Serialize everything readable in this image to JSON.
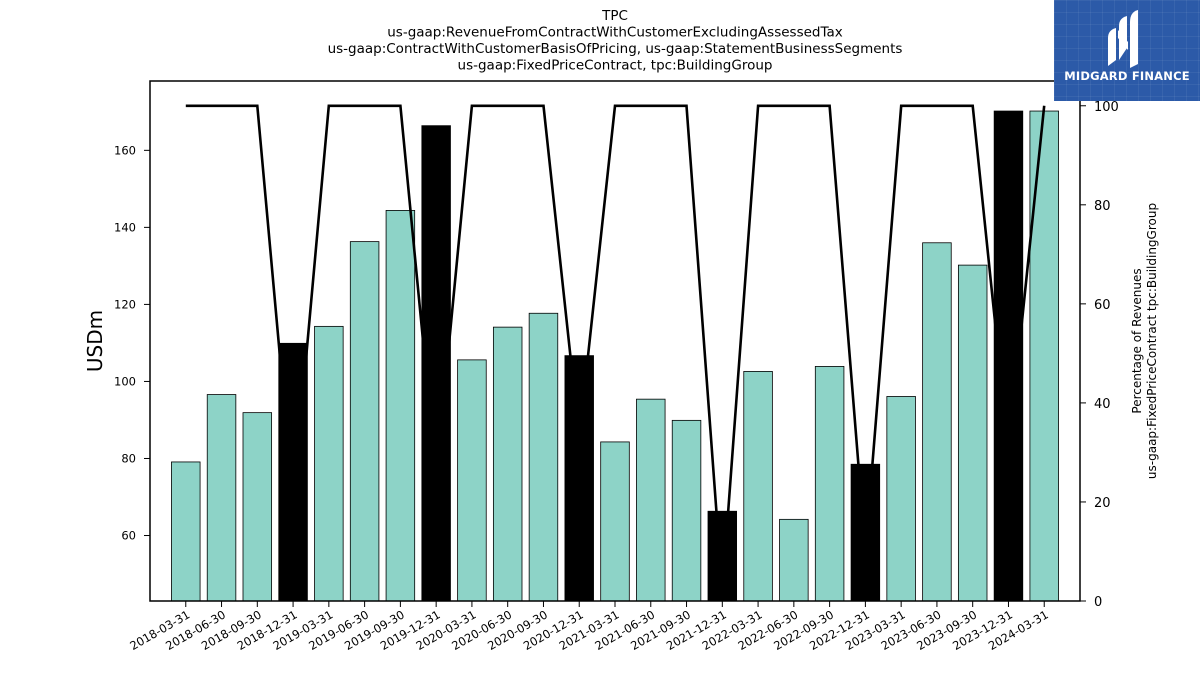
{
  "chart_data": {
    "type": "bar",
    "title_lines": [
      "TPC",
      "us-gaap:RevenueFromContractWithCustomerExcludingAssessedTax",
      "us-gaap:ContractWithCustomerBasisOfPricing, us-gaap:StatementBusinessSegments",
      "us-gaap:FixedPriceContract, tpc:BuildingGroup"
    ],
    "xlabel": "",
    "ylabel": "USDm",
    "y2label_lines": [
      "Percentage of Revenues",
      "us-gaap:FixedPriceContract tpc:BuildingGroup"
    ],
    "ylim": [
      43,
      178
    ],
    "yticks": [
      60,
      80,
      100,
      120,
      140,
      160
    ],
    "y2lim": [
      0,
      105
    ],
    "y2ticks": [
      0,
      20,
      40,
      60,
      80,
      100
    ],
    "categories": [
      "2018-03-31",
      "2018-06-30",
      "2018-09-30",
      "2018-12-31",
      "2019-03-31",
      "2019-06-30",
      "2019-09-30",
      "2019-12-31",
      "2020-03-31",
      "2020-06-30",
      "2020-09-30",
      "2020-12-31",
      "2021-03-31",
      "2021-06-30",
      "2021-09-30",
      "2021-12-31",
      "2022-03-31",
      "2022-06-30",
      "2022-09-30",
      "2022-12-31",
      "2023-03-31",
      "2023-06-30",
      "2023-09-30",
      "2023-12-31",
      "2024-03-31"
    ],
    "series": [
      {
        "type": "bar",
        "values": [
          79.1,
          96.6,
          91.9,
          109.9,
          114.3,
          136.3,
          144.4,
          166.4,
          105.6,
          114.1,
          117.7,
          106.7,
          84.3,
          95.4,
          89.9,
          66.3,
          102.6,
          64.2,
          103.9,
          78.5,
          96.1,
          136.0,
          130.2,
          170.2,
          170.2
        ],
        "colors": [
          "#8dd3c7",
          "#8dd3c7",
          "#8dd3c7",
          "#000000",
          "#8dd3c7",
          "#8dd3c7",
          "#8dd3c7",
          "#000000",
          "#8dd3c7",
          "#8dd3c7",
          "#8dd3c7",
          "#000000",
          "#8dd3c7",
          "#8dd3c7",
          "#8dd3c7",
          "#000000",
          "#8dd3c7",
          "#8dd3c7",
          "#8dd3c7",
          "#000000",
          "#8dd3c7",
          "#8dd3c7",
          "#8dd3c7",
          "#000000",
          "#8dd3c7"
        ]
      },
      {
        "type": "line",
        "axis": "right",
        "values": [
          100,
          100,
          100,
          20,
          100,
          100,
          100,
          25,
          100,
          100,
          100,
          33,
          100,
          100,
          100,
          2,
          100,
          100,
          100,
          10,
          100,
          100,
          100,
          30,
          100
        ],
        "color": "#000000"
      }
    ],
    "grid": false,
    "legend": "none"
  },
  "logo": {
    "text": "MIDGARD FINANCE",
    "icon": "midgard-logo-icon",
    "background": "#2c5aa8"
  }
}
